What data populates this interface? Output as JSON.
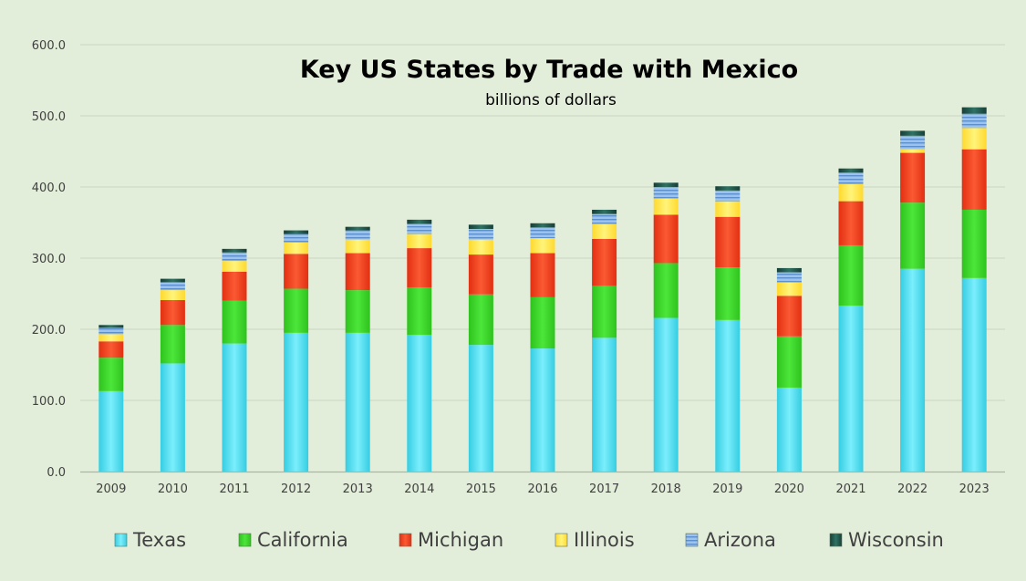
{
  "chart_data": {
    "type": "bar",
    "stacked": true,
    "title": "Key US States by Trade with Mexico",
    "subtitle": "billions of dollars",
    "categories": [
      "2009",
      "2010",
      "2011",
      "2012",
      "2013",
      "2014",
      "2015",
      "2016",
      "2017",
      "2018",
      "2019",
      "2020",
      "2021",
      "2022",
      "2023"
    ],
    "series": [
      {
        "name": "Texas",
        "color": "#4FE3F5",
        "values": [
          113,
          152,
          180,
          195,
          195,
          192,
          178,
          173,
          188,
          216,
          213,
          118,
          233,
          285,
          272
        ]
      },
      {
        "name": "California",
        "color": "#3ED62B",
        "values": [
          47,
          54,
          60,
          62,
          60,
          67,
          71,
          72,
          73,
          77,
          74,
          72,
          85,
          93,
          96
        ]
      },
      {
        "name": "Michigan",
        "color": "#F2401F",
        "values": [
          23,
          35,
          41,
          49,
          52,
          55,
          56,
          62,
          66,
          68,
          71,
          57,
          62,
          70,
          85
        ]
      },
      {
        "name": "Illinois",
        "color": "#FFE84A",
        "values": [
          10,
          14,
          15,
          16,
          19,
          20,
          21,
          21,
          21,
          23,
          22,
          19,
          24,
          5,
          30
        ]
      },
      {
        "name": "Arizona",
        "color": "#8FB8E6",
        "values": [
          9,
          11,
          12,
          12,
          13,
          14,
          15,
          15,
          14,
          16,
          15,
          14,
          16,
          19,
          20
        ]
      },
      {
        "name": "Wisconsin",
        "color": "#1F5A4E",
        "values": [
          4,
          5,
          5,
          5,
          5,
          6,
          6,
          6,
          6,
          6,
          6,
          6,
          6,
          7,
          9
        ]
      }
    ],
    "ylim": [
      0,
      600
    ],
    "yticks": [
      "0.0",
      "100.0",
      "200.0",
      "300.0",
      "400.0",
      "500.0",
      "600.0"
    ],
    "grid": true,
    "legend_position": "bottom"
  }
}
